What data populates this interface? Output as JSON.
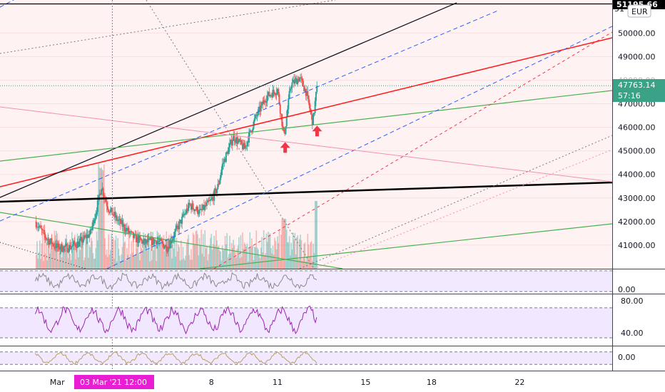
{
  "chart_data": {
    "type": "line",
    "main": {
      "kind": "candlestick",
      "currency": "EUR",
      "price_ticks": [
        41000,
        42000,
        43000,
        44000,
        45000,
        46000,
        47000,
        48000,
        49000,
        50000
      ],
      "y_range": [
        40000,
        51400
      ],
      "last_price": "47763.14",
      "countdown": "57:16",
      "top_level_price": "51195.66",
      "partial_top_tick": "51",
      "close_path": [
        {
          "x": 0.0,
          "y": 42000
        },
        {
          "x": 0.5,
          "y": 41300
        },
        {
          "x": 1.0,
          "y": 40900
        },
        {
          "x": 1.5,
          "y": 40900
        },
        {
          "x": 2.0,
          "y": 41100
        },
        {
          "x": 2.5,
          "y": 41500
        },
        {
          "x": 2.8,
          "y": 42600
        },
        {
          "x": 3.0,
          "y": 43500
        },
        {
          "x": 3.3,
          "y": 42600
        },
        {
          "x": 3.7,
          "y": 42100
        },
        {
          "x": 4.0,
          "y": 41800
        },
        {
          "x": 4.5,
          "y": 41300
        },
        {
          "x": 5.0,
          "y": 41100
        },
        {
          "x": 5.5,
          "y": 41200
        },
        {
          "x": 6.0,
          "y": 40900
        },
        {
          "x": 6.5,
          "y": 41800
        },
        {
          "x": 7.0,
          "y": 42700
        },
        {
          "x": 7.5,
          "y": 42400
        },
        {
          "x": 8.0,
          "y": 42900
        },
        {
          "x": 8.3,
          "y": 43500
        },
        {
          "x": 8.5,
          "y": 44400
        },
        {
          "x": 9.0,
          "y": 45600
        },
        {
          "x": 9.5,
          "y": 45100
        },
        {
          "x": 10.0,
          "y": 46400
        },
        {
          "x": 10.5,
          "y": 47300
        },
        {
          "x": 11.0,
          "y": 47600
        },
        {
          "x": 11.3,
          "y": 45600
        },
        {
          "x": 11.6,
          "y": 47800
        },
        {
          "x": 12.0,
          "y": 48100
        },
        {
          "x": 12.3,
          "y": 47500
        },
        {
          "x": 12.6,
          "y": 46200
        },
        {
          "x": 12.8,
          "y": 47763
        }
      ],
      "annotations": [
        "up-arrow",
        "up-arrow"
      ]
    },
    "x_axis": {
      "ticks": [
        {
          "label": "Mar",
          "day": 1
        },
        {
          "label": "8",
          "day": 8
        },
        {
          "label": "11",
          "day": 11
        },
        {
          "label": "15",
          "day": 15
        },
        {
          "label": "18",
          "day": 18
        },
        {
          "label": "22",
          "day": 22
        }
      ],
      "crosshair_label": "03 Mar '21  12:00",
      "crosshair_day": 3.5,
      "x_range": [
        -1.6,
        26.2
      ]
    },
    "indicators": [
      {
        "name": "oscillator-1",
        "tick": "0.00",
        "band": [
          0,
          100
        ],
        "range": [
          -10,
          110
        ],
        "center": 50,
        "amplitude": 30
      },
      {
        "name": "rsi",
        "ticks": [
          "80.00",
          "40.00"
        ],
        "band": [
          32,
          70
        ],
        "range": [
          22,
          88
        ]
      },
      {
        "name": "oscillator-3",
        "tick": "0.00",
        "band": [
          -1,
          1
        ],
        "range": [
          -2,
          2
        ]
      }
    ],
    "colors": {
      "up": "#26a69a",
      "down": "#ef5350",
      "crosshair": "#e040fb",
      "crosshair_label_bg": "#e91ed4",
      "last_price_bg": "#3aa287",
      "arrow": "#f23645",
      "band_fill": "#f0e4ff",
      "rsi_line": "#9c27b0"
    }
  }
}
